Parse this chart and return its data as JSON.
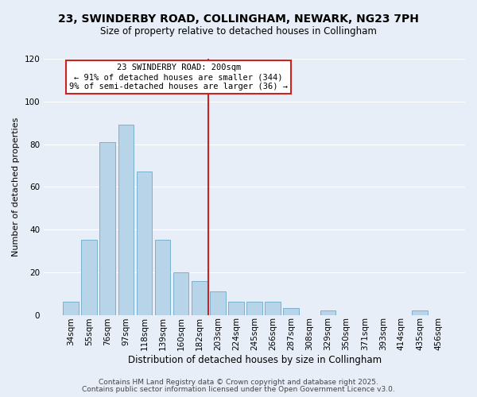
{
  "title": "23, SWINDERBY ROAD, COLLINGHAM, NEWARK, NG23 7PH",
  "subtitle": "Size of property relative to detached houses in Collingham",
  "xlabel": "Distribution of detached houses by size in Collingham",
  "ylabel": "Number of detached properties",
  "categories": [
    "34sqm",
    "55sqm",
    "76sqm",
    "97sqm",
    "118sqm",
    "139sqm",
    "160sqm",
    "182sqm",
    "203sqm",
    "224sqm",
    "245sqm",
    "266sqm",
    "287sqm",
    "308sqm",
    "329sqm",
    "350sqm",
    "371sqm",
    "393sqm",
    "414sqm",
    "435sqm",
    "456sqm"
  ],
  "values": [
    6,
    35,
    81,
    89,
    67,
    35,
    20,
    16,
    11,
    6,
    6,
    6,
    3,
    0,
    2,
    0,
    0,
    0,
    0,
    2,
    0
  ],
  "bar_color": "#b8d4e8",
  "bar_edge_color": "#7ab0d0",
  "vline_x_index": 8,
  "vline_color": "#cc2222",
  "annotation_title": "23 SWINDERBY ROAD: 200sqm",
  "annotation_line1": "← 91% of detached houses are smaller (344)",
  "annotation_line2": "9% of semi-detached houses are larger (36) →",
  "annotation_box_edge": "#cc2222",
  "ylim": [
    0,
    120
  ],
  "yticks": [
    0,
    20,
    40,
    60,
    80,
    100,
    120
  ],
  "background_color": "#e8eef8",
  "grid_color": "#ffffff",
  "footer_line1": "Contains HM Land Registry data © Crown copyright and database right 2025.",
  "footer_line2": "Contains public sector information licensed under the Open Government Licence v3.0.",
  "title_fontsize": 10,
  "subtitle_fontsize": 8.5,
  "xlabel_fontsize": 8.5,
  "ylabel_fontsize": 8,
  "tick_fontsize": 7.5,
  "footer_fontsize": 6.5
}
